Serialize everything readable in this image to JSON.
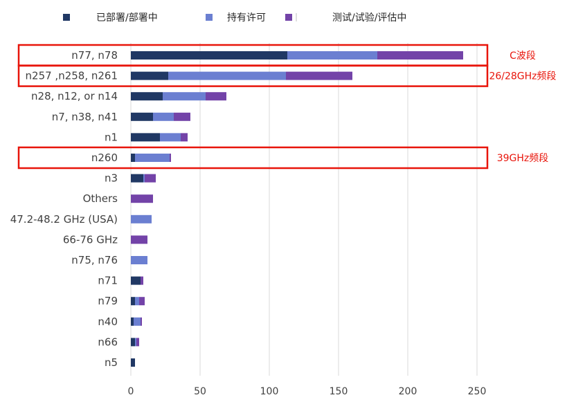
{
  "chart_data": {
    "type": "bar",
    "orientation": "horizontal",
    "stacked": true,
    "title": "",
    "xlabel": "",
    "ylabel": "",
    "xlim": [
      0,
      250
    ],
    "xticks": [
      0,
      50,
      100,
      150,
      200,
      250
    ],
    "grid": "vertical",
    "legend_position": "top",
    "categories": [
      "n77, n78",
      "n257 ,n258, n261",
      "n28, n12, or n14",
      "n7, n38, n41",
      "n1",
      "n260",
      "n3",
      "Others",
      "47.2-48.2 GHz (USA)",
      "66-76 GHz",
      "n75, n76",
      "n71",
      "n79",
      "n40",
      "n66",
      "n5"
    ],
    "series": [
      {
        "name": "已部署/部署中",
        "color": "#203864",
        "values": [
          113,
          27,
          23,
          16,
          21,
          3,
          9,
          0,
          0,
          0,
          0,
          7,
          3,
          2,
          3,
          3
        ]
      },
      {
        "name": "持有许可",
        "color": "#6b7fd1",
        "values": [
          65,
          85,
          31,
          15,
          15,
          25,
          1,
          0,
          15,
          0,
          12,
          0,
          3,
          5,
          1,
          0
        ]
      },
      {
        "name": "测试/试验/评估中",
        "color": "#7343a8",
        "values": [
          62,
          48,
          15,
          12,
          5,
          1,
          8,
          16,
          0,
          12,
          0,
          2,
          4,
          1,
          2,
          0
        ]
      }
    ],
    "annotations": [
      {
        "text": "C波段",
        "categories": [
          "n77, n78"
        ]
      },
      {
        "text": "26/28GHz频段",
        "categories": [
          "n257 ,n258, n261"
        ]
      },
      {
        "text": "39GHz频段",
        "categories": [
          "n260"
        ]
      }
    ],
    "colors": {
      "annotation": "#e8140a",
      "grid": "#d9d9d9",
      "text": "#404040"
    }
  }
}
